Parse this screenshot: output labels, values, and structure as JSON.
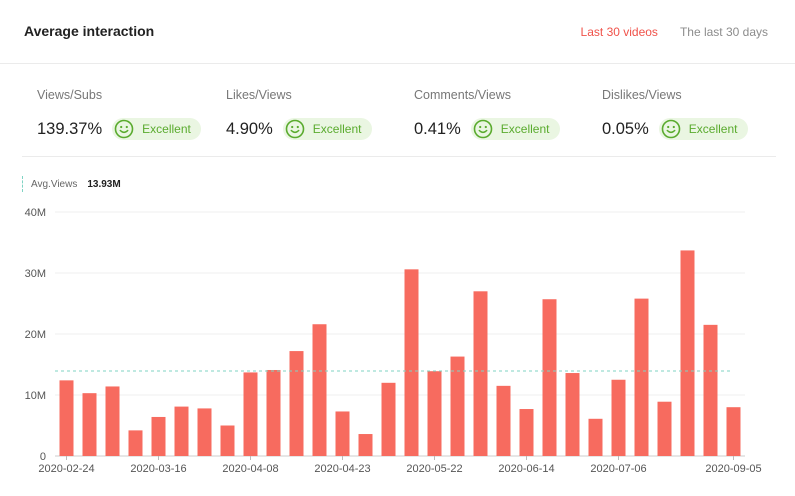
{
  "header": {
    "title": "Average interaction",
    "tabs": [
      {
        "label": "Last 30 videos",
        "active": true
      },
      {
        "label": "The last 30 days",
        "active": false
      }
    ]
  },
  "metrics": [
    {
      "label": "Views/Subs",
      "value": "139.37%",
      "rating": "Excellent"
    },
    {
      "label": "Likes/Views",
      "value": "4.90%",
      "rating": "Excellent"
    },
    {
      "label": "Comments/Views",
      "value": "0.41%",
      "rating": "Excellent"
    },
    {
      "label": "Dislikes/Views",
      "value": "0.05%",
      "rating": "Excellent"
    }
  ],
  "legend": {
    "label": "Avg.Views",
    "value": "13.93M"
  },
  "colors": {
    "accent": "#f0524a",
    "bar": "#f76b5f",
    "good": "#5aab2e",
    "average_line": "#7fd3c3"
  },
  "chart_data": {
    "type": "bar",
    "y_ticks": [
      "0",
      "10M",
      "20M",
      "30M",
      "40M"
    ],
    "ylim": [
      0,
      40
    ],
    "y_unit": "M",
    "x_tick_labels": [
      "2020-02-24",
      "2020-03-16",
      "2020-04-08",
      "2020-04-23",
      "2020-05-22",
      "2020-06-14",
      "2020-07-06",
      "2020-09-05"
    ],
    "x_tick_bar_index": [
      0,
      4,
      8,
      12,
      16,
      20,
      24,
      29
    ],
    "average": 13.93,
    "values": [
      12.4,
      10.3,
      11.4,
      4.2,
      6.4,
      8.1,
      7.8,
      5.0,
      13.7,
      14.1,
      17.2,
      21.6,
      7.3,
      3.6,
      12.0,
      30.6,
      13.9,
      16.3,
      27.0,
      11.5,
      7.7,
      25.7,
      13.6,
      6.1,
      12.5,
      25.8,
      8.9,
      33.7,
      21.5,
      8.0
    ],
    "grid": true
  }
}
